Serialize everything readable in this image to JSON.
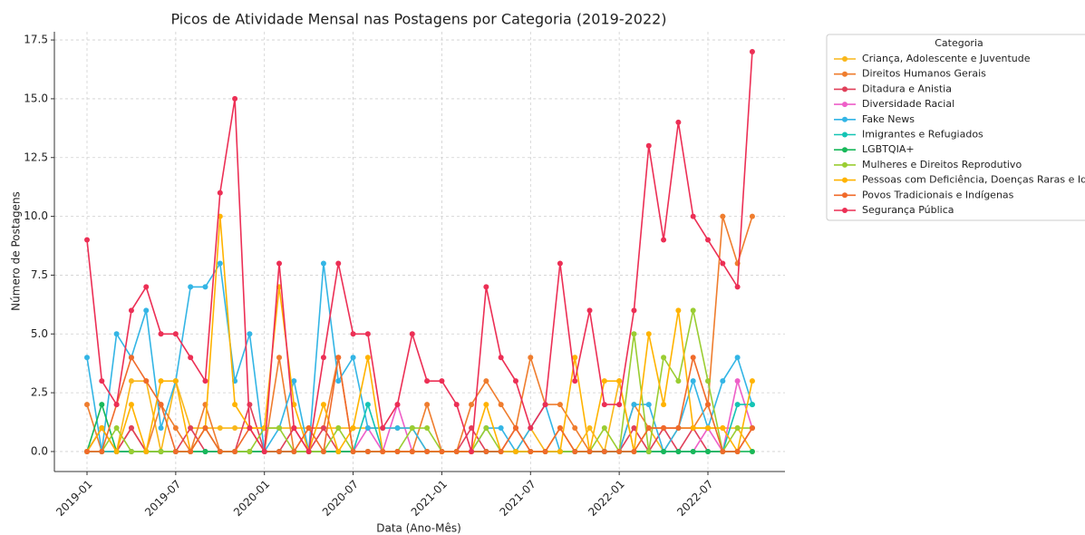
{
  "chart_data": {
    "type": "line",
    "title": "Picos de Atividade Mensal nas Postagens por Categoria (2019-2022)",
    "x_label": "Data (Ano-Mês)",
    "y_label": "Número de Postagens",
    "legend_title": "Categoria",
    "x": [
      "2019-01",
      "2019-02",
      "2019-03",
      "2019-04",
      "2019-05",
      "2019-06",
      "2019-07",
      "2019-08",
      "2019-09",
      "2019-10",
      "2019-11",
      "2019-12",
      "2020-01",
      "2020-02",
      "2020-03",
      "2020-04",
      "2020-05",
      "2020-06",
      "2020-07",
      "2020-08",
      "2020-09",
      "2020-10",
      "2020-11",
      "2020-12",
      "2021-01",
      "2021-02",
      "2021-03",
      "2021-04",
      "2021-05",
      "2021-06",
      "2021-07",
      "2021-08",
      "2021-09",
      "2021-10",
      "2021-11",
      "2021-12",
      "2022-01",
      "2022-02",
      "2022-03",
      "2022-04",
      "2022-05",
      "2022-06",
      "2022-07",
      "2022-08",
      "2022-09",
      "2022-10"
    ],
    "xticks": [
      "2019-01",
      "2019-07",
      "2020-01",
      "2020-07",
      "2021-01",
      "2021-07",
      "2022-01",
      "2022-07"
    ],
    "ylim": [
      -0.85,
      17.85
    ],
    "yticks": [
      {
        "value": 0,
        "label": "0.0"
      },
      2.5,
      {
        "value": 5,
        "label": "5.0"
      },
      7.5,
      {
        "value": 10,
        "label": "10.0"
      },
      12.5,
      {
        "value": 15,
        "label": "15.0"
      },
      17.5
    ],
    "grid": true,
    "legend": "outside right",
    "series": [
      {
        "name": "Criança, Adolescente e Juventude",
        "color": "#f9b71a",
        "values": [
          0,
          1,
          0,
          3,
          3,
          0,
          3,
          1,
          1,
          1,
          1,
          1,
          1,
          1,
          1,
          1,
          1,
          1,
          1,
          1,
          1,
          1,
          1,
          0,
          0,
          0,
          0,
          0,
          0,
          0,
          1,
          0,
          1,
          0,
          1,
          0,
          3,
          0,
          1,
          0,
          1,
          1,
          1,
          1,
          1,
          0
        ]
      },
      {
        "name": "Direitos Humanos Gerais",
        "color": "#ef7d2e",
        "values": [
          2,
          0,
          0,
          1,
          0,
          2,
          1,
          0,
          2,
          0,
          0,
          0,
          0,
          4,
          0,
          1,
          1,
          4,
          0,
          0,
          0,
          0,
          0,
          2,
          0,
          0,
          2,
          3,
          2,
          1,
          4,
          2,
          2,
          1,
          0,
          0,
          0,
          2,
          1,
          1,
          1,
          1,
          2,
          10,
          8,
          10
        ]
      },
      {
        "name": "Ditadura e Anistia",
        "color": "#e0405a",
        "values": [
          0,
          1,
          0,
          1,
          0,
          0,
          0,
          1,
          0,
          0,
          0,
          2,
          0,
          0,
          1,
          0,
          1,
          0,
          0,
          0,
          0,
          0,
          0,
          0,
          0,
          0,
          1,
          0,
          0,
          1,
          0,
          0,
          0,
          0,
          0,
          0,
          0,
          1,
          0,
          1,
          0,
          1,
          0,
          0,
          0,
          1
        ]
      },
      {
        "name": "Diversidade Racial",
        "color": "#ee5fc8",
        "values": [
          0,
          0,
          0,
          0,
          0,
          0,
          0,
          0,
          0,
          0,
          0,
          0,
          0,
          0,
          0,
          0,
          0,
          0,
          0,
          1,
          0,
          2,
          0,
          0,
          0,
          0,
          0,
          0,
          0,
          0,
          0,
          0,
          0,
          0,
          0,
          0,
          0,
          0,
          0,
          0,
          0,
          0,
          1,
          0,
          3,
          1
        ]
      },
      {
        "name": "Fake News",
        "color": "#33b5e5",
        "values": [
          4,
          0,
          5,
          4,
          6,
          1,
          3,
          7,
          7,
          8,
          3,
          5,
          0,
          1,
          3,
          0,
          8,
          3,
          4,
          1,
          1,
          1,
          1,
          0,
          0,
          0,
          0,
          1,
          1,
          0,
          1,
          2,
          0,
          0,
          0,
          0,
          0,
          2,
          2,
          0,
          1,
          3,
          1,
          3,
          4,
          2
        ]
      },
      {
        "name": "Imigrantes e Refugiados",
        "color": "#14c4b4",
        "values": [
          0,
          0,
          0,
          0,
          0,
          0,
          0,
          0,
          0,
          0,
          0,
          0,
          0,
          0,
          0,
          0,
          0,
          0,
          0,
          2,
          0,
          0,
          0,
          0,
          0,
          0,
          0,
          0,
          0,
          0,
          0,
          0,
          0,
          0,
          0,
          0,
          0,
          0,
          0,
          0,
          0,
          0,
          0,
          0,
          2,
          2
        ]
      },
      {
        "name": "LGBTQIA+",
        "color": "#18b85a",
        "values": [
          0,
          2,
          0,
          0,
          0,
          0,
          0,
          0,
          0,
          0,
          0,
          0,
          0,
          0,
          0,
          0,
          0,
          0,
          0,
          0,
          0,
          0,
          0,
          0,
          0,
          0,
          0,
          0,
          0,
          0,
          0,
          0,
          0,
          0,
          0,
          0,
          0,
          0,
          0,
          0,
          0,
          0,
          0,
          0,
          0,
          0
        ]
      },
      {
        "name": "Mulheres e Direitos Reprodutivo",
        "color": "#9acd32",
        "values": [
          0,
          0,
          1,
          0,
          0,
          0,
          0,
          0,
          1,
          0,
          0,
          0,
          1,
          1,
          0,
          0,
          0,
          1,
          0,
          0,
          0,
          0,
          1,
          1,
          0,
          0,
          0,
          1,
          0,
          0,
          0,
          0,
          0,
          0,
          0,
          1,
          0,
          5,
          0,
          4,
          3,
          6,
          3,
          0,
          1,
          1
        ]
      },
      {
        "name": "Pessoas com Deficiência, Doenças Raras e Idosos",
        "color": "#ffb300",
        "values": [
          0,
          1,
          0,
          2,
          0,
          3,
          3,
          0,
          1,
          10,
          2,
          1,
          1,
          7,
          2,
          0,
          2,
          0,
          1,
          4,
          0,
          0,
          0,
          0,
          0,
          0,
          0,
          2,
          0,
          0,
          0,
          0,
          0,
          4,
          0,
          3,
          3,
          0,
          5,
          2,
          6,
          1,
          1,
          1,
          0,
          3
        ]
      },
      {
        "name": "Povos Tradicionais e Indígenas",
        "color": "#f06a2a",
        "values": [
          0,
          0,
          2,
          4,
          3,
          2,
          0,
          0,
          1,
          0,
          0,
          1,
          0,
          0,
          0,
          1,
          0,
          4,
          0,
          0,
          0,
          0,
          0,
          0,
          0,
          0,
          0,
          0,
          0,
          1,
          0,
          0,
          1,
          0,
          0,
          0,
          0,
          0,
          1,
          1,
          1,
          4,
          2,
          0,
          0,
          1
        ]
      },
      {
        "name": "Segurança Pública",
        "color": "#ec2f55",
        "values": [
          9,
          3,
          2,
          6,
          7,
          5,
          5,
          4,
          3,
          11,
          15,
          1,
          0,
          8,
          1,
          0,
          4,
          8,
          5,
          5,
          1,
          2,
          5,
          3,
          3,
          2,
          0,
          7,
          4,
          3,
          1,
          2,
          8,
          3,
          6,
          2,
          2,
          6,
          13,
          9,
          14,
          10,
          9,
          8,
          7,
          17
        ]
      }
    ]
  }
}
